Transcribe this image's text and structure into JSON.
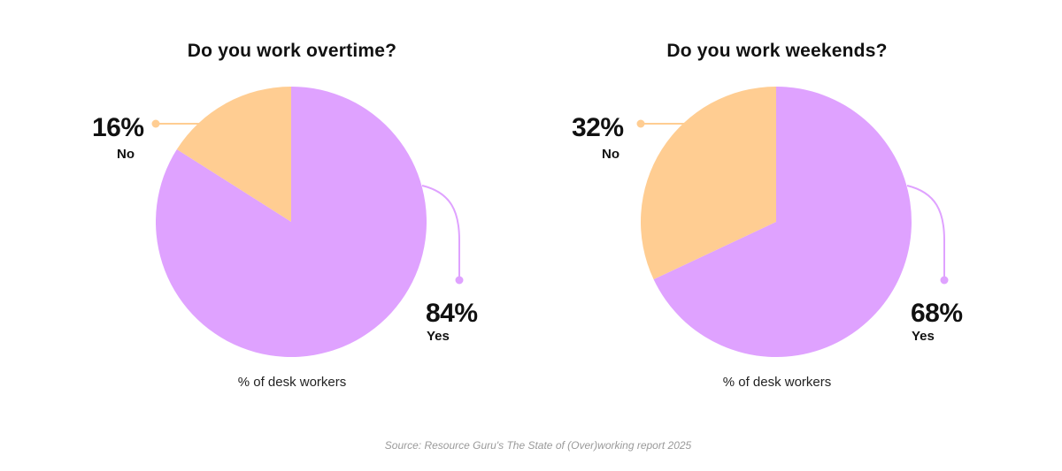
{
  "colors": {
    "yes": "#dfa2ff",
    "no": "#ffcd92",
    "text": "#111111",
    "source": "#9a9a9a"
  },
  "chart_data": [
    {
      "type": "pie",
      "title": "Do you work overtime?",
      "caption": "% of desk workers",
      "slices": [
        {
          "label": "No",
          "value": 16,
          "display": "16%"
        },
        {
          "label": "Yes",
          "value": 84,
          "display": "84%"
        }
      ]
    },
    {
      "type": "pie",
      "title": "Do you work weekends?",
      "caption": "% of desk workers",
      "slices": [
        {
          "label": "No",
          "value": 32,
          "display": "32%"
        },
        {
          "label": "Yes",
          "value": 68,
          "display": "68%"
        }
      ]
    }
  ],
  "source": "Source: Resource Guru's The State of (Over)working report 2025"
}
